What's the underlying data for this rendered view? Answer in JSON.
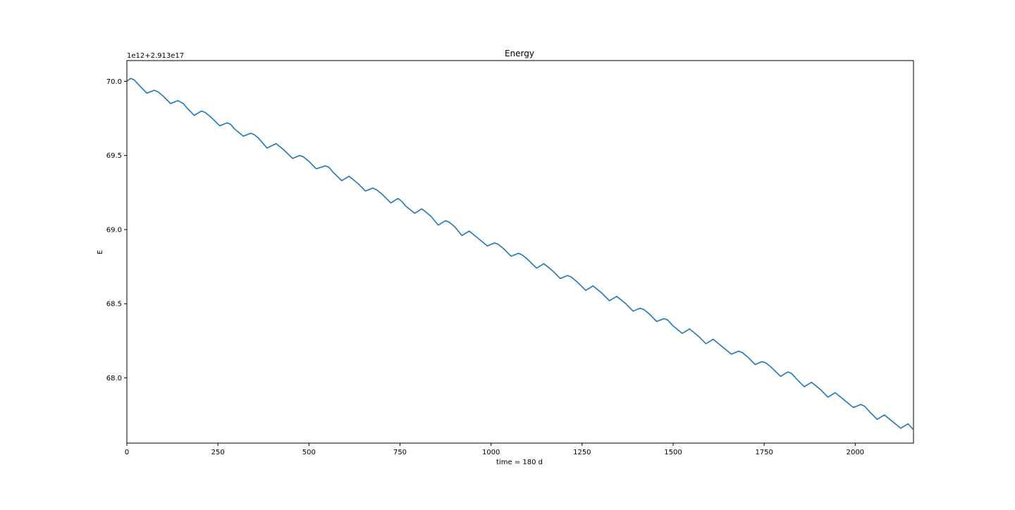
{
  "chart_data": {
    "type": "line",
    "title": "Energy",
    "xlabel": "time = 180 d",
    "ylabel": "E",
    "offset_text": "1e12+2.913e17",
    "xlim": [
      0,
      2160
    ],
    "ylim": [
      67.56,
      70.14
    ],
    "x_ticks": [
      0,
      250,
      500,
      750,
      1000,
      1250,
      1500,
      1750,
      2000
    ],
    "x_tick_labels": [
      "0",
      "250",
      "500",
      "750",
      "1000",
      "1250",
      "1500",
      "1750",
      "2000"
    ],
    "y_ticks": [
      68.0,
      68.5,
      69.0,
      69.5,
      70.0
    ],
    "y_tick_labels": [
      "68.0",
      "68.5",
      "69.0",
      "69.5",
      "70.0"
    ],
    "grid": false,
    "series": [
      {
        "color": "#1f77b4",
        "points": [
          [
            0,
            70.0
          ],
          [
            10,
            70.02
          ],
          [
            20,
            70.01
          ],
          [
            35,
            69.97
          ],
          [
            55,
            69.92
          ],
          [
            75,
            69.94
          ],
          [
            85,
            69.93
          ],
          [
            100,
            69.9
          ],
          [
            120,
            69.85
          ],
          [
            140,
            69.87
          ],
          [
            155,
            69.85
          ],
          [
            165,
            69.82
          ],
          [
            185,
            69.77
          ],
          [
            205,
            69.8
          ],
          [
            215,
            69.79
          ],
          [
            230,
            69.76
          ],
          [
            255,
            69.7
          ],
          [
            275,
            69.72
          ],
          [
            285,
            69.71
          ],
          [
            295,
            69.68
          ],
          [
            320,
            69.63
          ],
          [
            340,
            69.65
          ],
          [
            350,
            69.64
          ],
          [
            360,
            69.62
          ],
          [
            385,
            69.55
          ],
          [
            410,
            69.58
          ],
          [
            420,
            69.56
          ],
          [
            430,
            69.54
          ],
          [
            455,
            69.48
          ],
          [
            475,
            69.5
          ],
          [
            485,
            69.49
          ],
          [
            500,
            69.46
          ],
          [
            520,
            69.41
          ],
          [
            545,
            69.43
          ],
          [
            555,
            69.42
          ],
          [
            565,
            69.39
          ],
          [
            590,
            69.33
          ],
          [
            610,
            69.36
          ],
          [
            620,
            69.34
          ],
          [
            635,
            69.31
          ],
          [
            655,
            69.26
          ],
          [
            675,
            69.28
          ],
          [
            685,
            69.27
          ],
          [
            700,
            69.24
          ],
          [
            725,
            69.18
          ],
          [
            745,
            69.21
          ],
          [
            755,
            69.19
          ],
          [
            765,
            69.16
          ],
          [
            790,
            69.11
          ],
          [
            810,
            69.14
          ],
          [
            820,
            69.12
          ],
          [
            835,
            69.09
          ],
          [
            855,
            69.03
          ],
          [
            875,
            69.06
          ],
          [
            885,
            69.05
          ],
          [
            900,
            69.02
          ],
          [
            920,
            68.96
          ],
          [
            940,
            68.99
          ],
          [
            950,
            68.97
          ],
          [
            965,
            68.94
          ],
          [
            990,
            68.89
          ],
          [
            1010,
            68.91
          ],
          [
            1020,
            68.9
          ],
          [
            1035,
            68.87
          ],
          [
            1055,
            68.82
          ],
          [
            1075,
            68.84
          ],
          [
            1085,
            68.83
          ],
          [
            1100,
            68.8
          ],
          [
            1125,
            68.74
          ],
          [
            1145,
            68.77
          ],
          [
            1155,
            68.75
          ],
          [
            1170,
            68.72
          ],
          [
            1190,
            68.67
          ],
          [
            1210,
            68.69
          ],
          [
            1220,
            68.68
          ],
          [
            1235,
            68.65
          ],
          [
            1260,
            68.59
          ],
          [
            1280,
            68.62
          ],
          [
            1290,
            68.6
          ],
          [
            1305,
            68.57
          ],
          [
            1325,
            68.52
          ],
          [
            1345,
            68.55
          ],
          [
            1355,
            68.53
          ],
          [
            1370,
            68.5
          ],
          [
            1390,
            68.45
          ],
          [
            1410,
            68.47
          ],
          [
            1420,
            68.46
          ],
          [
            1435,
            68.43
          ],
          [
            1455,
            68.38
          ],
          [
            1475,
            68.4
          ],
          [
            1485,
            68.39
          ],
          [
            1500,
            68.35
          ],
          [
            1525,
            68.3
          ],
          [
            1545,
            68.33
          ],
          [
            1555,
            68.31
          ],
          [
            1570,
            68.28
          ],
          [
            1590,
            68.23
          ],
          [
            1610,
            68.26
          ],
          [
            1620,
            68.24
          ],
          [
            1635,
            68.21
          ],
          [
            1660,
            68.16
          ],
          [
            1680,
            68.18
          ],
          [
            1690,
            68.17
          ],
          [
            1705,
            68.14
          ],
          [
            1725,
            68.09
          ],
          [
            1745,
            68.11
          ],
          [
            1755,
            68.1
          ],
          [
            1770,
            68.07
          ],
          [
            1795,
            68.01
          ],
          [
            1815,
            68.04
          ],
          [
            1825,
            68.03
          ],
          [
            1840,
            67.99
          ],
          [
            1860,
            67.94
          ],
          [
            1880,
            67.97
          ],
          [
            1890,
            67.95
          ],
          [
            1905,
            67.92
          ],
          [
            1925,
            67.87
          ],
          [
            1945,
            67.9
          ],
          [
            1955,
            67.88
          ],
          [
            1970,
            67.85
          ],
          [
            1995,
            67.8
          ],
          [
            2015,
            67.82
          ],
          [
            2025,
            67.81
          ],
          [
            2040,
            67.77
          ],
          [
            2060,
            67.72
          ],
          [
            2080,
            67.75
          ],
          [
            2090,
            67.73
          ],
          [
            2105,
            67.7
          ],
          [
            2125,
            67.66
          ],
          [
            2145,
            67.69
          ],
          [
            2160,
            67.65
          ]
        ]
      }
    ]
  }
}
